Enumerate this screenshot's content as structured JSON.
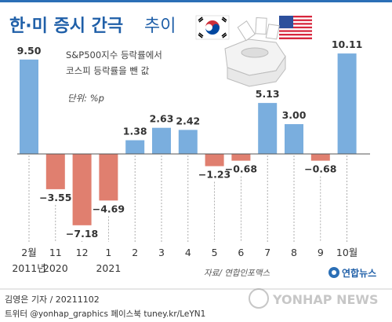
{
  "header": {
    "title_main": "한·미 증시 간극",
    "title_sub": "추이"
  },
  "note": {
    "line1": "S&P500지수 등락률에서",
    "line2": "코스피 등락률을 뺀 값",
    "unit": "단위: %p"
  },
  "source": "자료/ 연합인포맥스",
  "logo_text": "연합뉴스",
  "footer": {
    "line1": "김영은 기자 / 20211102",
    "line2": "트위터 @yonhap_graphics  페이스북 tuney.kr/LeYN1",
    "watermark": "YONHAP NEWS"
  },
  "chart_data": {
    "type": "bar",
    "categories": [
      "2월",
      "11",
      "12",
      "1",
      "2",
      "3",
      "4",
      "5",
      "6",
      "7",
      "8",
      "9",
      "10월"
    ],
    "year_labels": [
      "2011년",
      "2020",
      "",
      "2021",
      "",
      "",
      "",
      "",
      "",
      "",
      "",
      "",
      ""
    ],
    "values": [
      9.5,
      -3.55,
      -7.18,
      -4.69,
      1.38,
      2.63,
      2.42,
      -1.23,
      -0.68,
      5.13,
      3.0,
      -0.68,
      10.11
    ],
    "value_labels": [
      "9.50",
      "−3.55",
      "−7.18",
      "−4.69",
      "1.38",
      "2.63",
      "2.42",
      "−1.23",
      "−0.68",
      "5.13",
      "3.00",
      "−0.68",
      "10.11"
    ],
    "title": "한·미 증시 간극 추이",
    "ylabel": "단위: %p",
    "ylim": [
      -8,
      11
    ],
    "colors": {
      "positive": "#7aaede",
      "negative": "#e07f6f",
      "axis": "#555555"
    }
  }
}
